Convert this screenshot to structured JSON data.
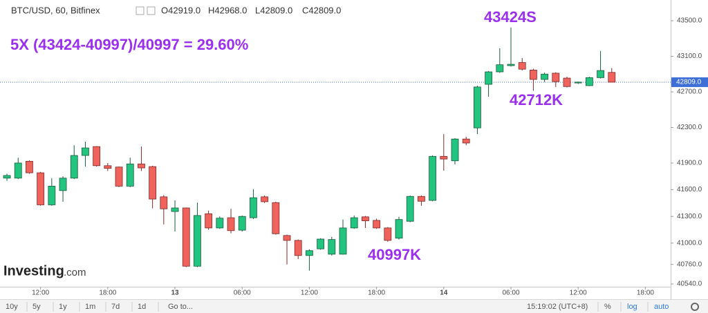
{
  "header": {
    "symbol": "BTC/USD, 60, Bitfinex",
    "ohlc": [
      "O42919.0",
      "H42968.0",
      "L42809.0",
      "C42809.0"
    ]
  },
  "chart_data": {
    "type": "candlestick",
    "open": [
      41730,
      41730,
      41920,
      41790,
      41430,
      41590,
      41730,
      41985,
      42085,
      41870,
      41855,
      41640,
      41890,
      41860,
      41520,
      41355,
      41395,
      40740,
      41330,
      41170,
      41285,
      41145,
      41285,
      41520,
      41455,
      41085,
      41030,
      40860,
      40935,
      40875,
      40875,
      41170,
      41295,
      41255,
      41170,
      41055,
      41245,
      41525,
      41480,
      41975,
      41925,
      42170,
      42295,
      42785,
      42925,
      42995,
      43030,
      42945,
      42840,
      42910,
      42855,
      42800,
      42770,
      42860,
      42919
    ],
    "high": [
      41780,
      41960,
      41930,
      41800,
      41730,
      41750,
      42100,
      42140,
      42090,
      41900,
      41860,
      41960,
      42085,
      41870,
      41540,
      41480,
      41400,
      41455,
      41365,
      41300,
      41385,
      41310,
      41605,
      41535,
      41465,
      41095,
      41040,
      40930,
      41055,
      41070,
      41265,
      41310,
      41305,
      41275,
      41180,
      41295,
      41535,
      41535,
      41985,
      42225,
      42180,
      42195,
      42770,
      42935,
      43190,
      43424,
      43080,
      42960,
      42915,
      42920,
      42870,
      42815,
      42870,
      43160,
      42968
    ],
    "low": [
      41700,
      41720,
      41780,
      41420,
      41420,
      41465,
      41720,
      41860,
      41860,
      41810,
      41630,
      41630,
      41810,
      41390,
      41210,
      41130,
      40730,
      40730,
      41150,
      41160,
      41110,
      41130,
      41270,
      41450,
      41095,
      40760,
      40820,
      40690,
      40925,
      40860,
      40870,
      41160,
      41170,
      41160,
      41015,
      41040,
      41235,
      41420,
      41470,
      41815,
      41885,
      42100,
      42225,
      42645,
      42915,
      42985,
      42940,
      42712,
      42810,
      42755,
      42750,
      42790,
      42765,
      42850,
      42809
    ],
    "close": [
      41760,
      41900,
      41790,
      41430,
      41640,
      41730,
      41985,
      42070,
      41870,
      41840,
      41640,
      41890,
      41845,
      41495,
      41385,
      41395,
      40740,
      41310,
      41170,
      41280,
      41140,
      41300,
      41510,
      41465,
      41105,
      41030,
      40860,
      40915,
      41045,
      41040,
      41170,
      41285,
      41250,
      41170,
      41030,
      41265,
      41525,
      41470,
      41975,
      41945,
      42170,
      42125,
      42755,
      42925,
      43005,
      43010,
      42955,
      42840,
      42900,
      42815,
      42760,
      42810,
      42860,
      42940,
      42809
    ],
    "up_color": "#22c47f",
    "down_color": "#f0625c",
    "ylim": [
      40509,
      43733
    ],
    "yticks": [
      {
        "value": 43500,
        "label": "43500.0"
      },
      {
        "value": 43100,
        "label": "43100.0"
      },
      {
        "value": 42700,
        "label": "42700.0"
      },
      {
        "value": 42300,
        "label": "42300.0"
      },
      {
        "value": 41900,
        "label": "41900.0"
      },
      {
        "value": 41600,
        "label": "41600.0"
      },
      {
        "value": 41300,
        "label": "41300.0"
      },
      {
        "value": 41000,
        "label": "41000.0"
      },
      {
        "value": 40760,
        "label": "40760.0"
      },
      {
        "value": 40540,
        "label": "40540.0"
      }
    ],
    "xlim": [
      -0.62,
      59.26
    ],
    "xticks": [
      {
        "value": 3,
        "label": "12:00"
      },
      {
        "value": 9,
        "label": "18:00"
      },
      {
        "value": 15,
        "label": "13"
      },
      {
        "value": 21,
        "label": "06:00"
      },
      {
        "value": 27,
        "label": "12:00"
      },
      {
        "value": 33,
        "label": "18:00"
      },
      {
        "value": 39,
        "label": "14"
      },
      {
        "value": 45,
        "label": "06:00"
      },
      {
        "value": 51,
        "label": "12:00"
      },
      {
        "value": 57,
        "label": "18:00"
      }
    ],
    "last_price": {
      "value": 42809,
      "label": "42809.0"
    },
    "annotations": [
      "5X (43424-40997)/40997 = 29.60%",
      "43424S",
      "42712K",
      "40997K"
    ]
  },
  "watermark": [
    "Investing",
    ".com"
  ],
  "toolbar": {
    "ranges": [
      "10y",
      "5y",
      "1y",
      "1m",
      "7d",
      "1d"
    ],
    "goto": "Go to...",
    "time": "15:19:02 (UTC+8)",
    "options": [
      "%",
      "log",
      "auto"
    ]
  }
}
